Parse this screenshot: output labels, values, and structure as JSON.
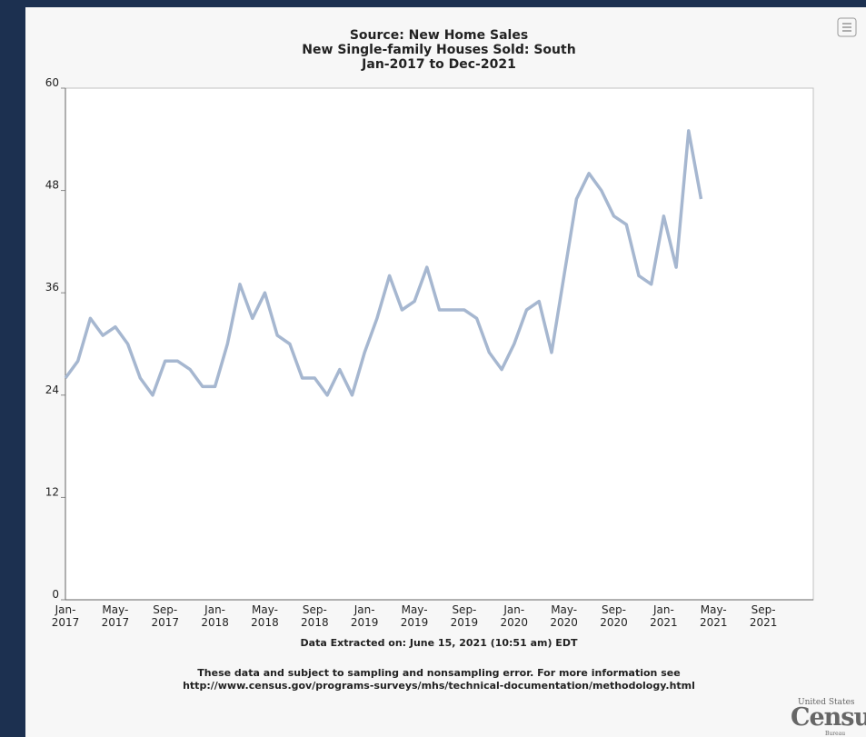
{
  "chart_data": {
    "type": "line",
    "title_lines": [
      "Source: New Home Sales",
      "New Single-family Houses Sold: South",
      "Jan-2017 to Dec-2021"
    ],
    "categories": [
      "Jan-2017",
      null,
      null,
      null,
      "May-2017",
      null,
      null,
      null,
      "Sep-2017",
      null,
      null,
      null,
      "Jan-2018",
      null,
      null,
      null,
      "May-2018",
      null,
      null,
      null,
      "Sep-2018",
      null,
      null,
      null,
      "Jan-2019",
      null,
      null,
      null,
      "May-2019",
      null,
      null,
      null,
      "Sep-2019",
      null,
      null,
      null,
      "Jan-2020",
      null,
      null,
      null,
      "May-2020",
      null,
      null,
      null,
      "Sep-2020",
      null,
      null,
      null,
      "Jan-2021",
      null,
      null,
      null,
      "May-2021",
      null,
      null,
      null,
      "Sep-2021",
      null,
      null,
      null
    ],
    "series": [
      {
        "color": "#a6b7d0",
        "values": [
          26,
          28,
          33,
          31,
          32,
          30,
          26,
          24,
          28,
          28,
          27,
          25,
          25,
          30,
          37,
          33,
          36,
          31,
          30,
          26,
          26,
          24,
          27,
          24,
          29,
          33,
          38,
          34,
          35,
          39,
          34,
          34,
          34,
          33,
          29,
          27,
          30,
          34,
          35,
          29,
          38,
          47,
          50,
          48,
          45,
          44,
          38,
          37,
          45,
          39,
          55,
          47,
          null,
          null,
          null,
          null,
          null,
          null,
          null,
          null
        ]
      }
    ],
    "ylim": [
      0,
      60
    ],
    "yticks": [
      0,
      12,
      24,
      36,
      48,
      60
    ],
    "extracted": "Data Extracted on: June 15, 2021 (10:51 am) EDT",
    "notes": [
      "These data and subject to sampling and nonsampling error. For more information see",
      "http://www.census.gov/programs-surveys/mhs/technical-documentation/methodology.html"
    ],
    "logo": {
      "top": "United States",
      "main": "Census",
      "bottom": "Bureau"
    }
  }
}
